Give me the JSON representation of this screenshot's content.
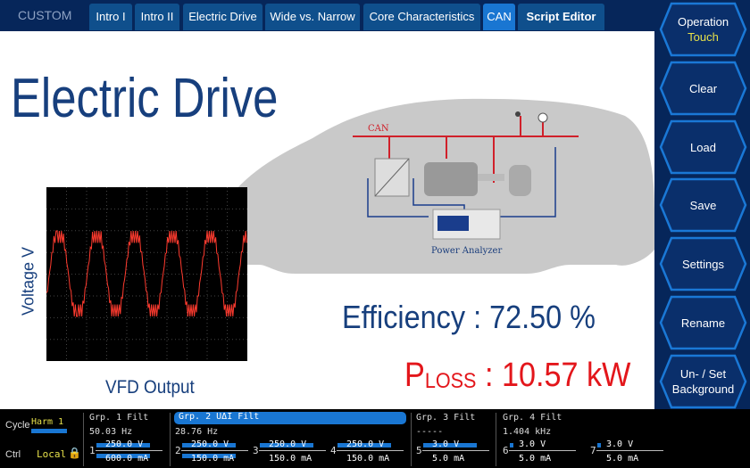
{
  "tabs": {
    "custom": "CUSTOM",
    "items": [
      {
        "label": "Intro I"
      },
      {
        "label": "Intro II"
      },
      {
        "label": "Electric Drive"
      },
      {
        "label": "Wide vs. Narrow"
      },
      {
        "label": "Core Characteristics"
      },
      {
        "label": "CAN",
        "active": true
      },
      {
        "label": "Script Editor"
      }
    ]
  },
  "main": {
    "title": "Electric Drive",
    "scope_ylabel": "Voltage V",
    "scope_caption": "VFD Output",
    "can_label": "CAN",
    "analyzer_label": "Power Analyzer",
    "efficiency": "Efficiency : 72.50 %",
    "ploss_p": "P",
    "ploss_sub": "LOSS",
    "ploss_value": " : 10.57 kW"
  },
  "side": {
    "operation": "Operation",
    "operation_mode": "Touch",
    "clear": "Clear",
    "load": "Load",
    "save": "Save",
    "settings": "Settings",
    "rename": "Rename",
    "background1": "Un- / Set",
    "background2": "Background"
  },
  "status": {
    "cycle_label": "Cycle",
    "cycle_value": "Harm 1",
    "ctrl_label": "Ctrl",
    "ctrl_value": "Local",
    "groups": [
      {
        "title": "Grp. 1",
        "filt": "Filt",
        "freq": "50.03  Hz"
      },
      {
        "title": "Grp. 2",
        "extra": "UΔI",
        "filt": "Filt",
        "freq": "28.76  Hz"
      },
      {
        "title": "Grp. 3",
        "filt": "Filt",
        "freq": "-----"
      },
      {
        "title": "Grp. 4",
        "filt": "Filt",
        "freq": "1.404 kHz"
      }
    ],
    "elements": [
      {
        "n": "1",
        "v": "250.0 V",
        "i": "600.0 mA"
      },
      {
        "n": "2",
        "v": "250.0 V",
        "i": "150.0 mA"
      },
      {
        "n": "3",
        "v": "250.0 V",
        "i": "150.0 mA"
      },
      {
        "n": "4",
        "v": "250.0 V",
        "i": "150.0 mA"
      },
      {
        "n": "5",
        "v": "3.0 V",
        "i": "5.0 mA"
      },
      {
        "n": "6",
        "v": "3.0 V",
        "i": "5.0 mA"
      },
      {
        "n": "7",
        "v": "3.0 V",
        "i": "5.0 mA"
      }
    ]
  },
  "colors": {
    "navy": "#06265a",
    "accent": "#1976d2",
    "title": "#173f7d",
    "loss": "#e3161b"
  }
}
